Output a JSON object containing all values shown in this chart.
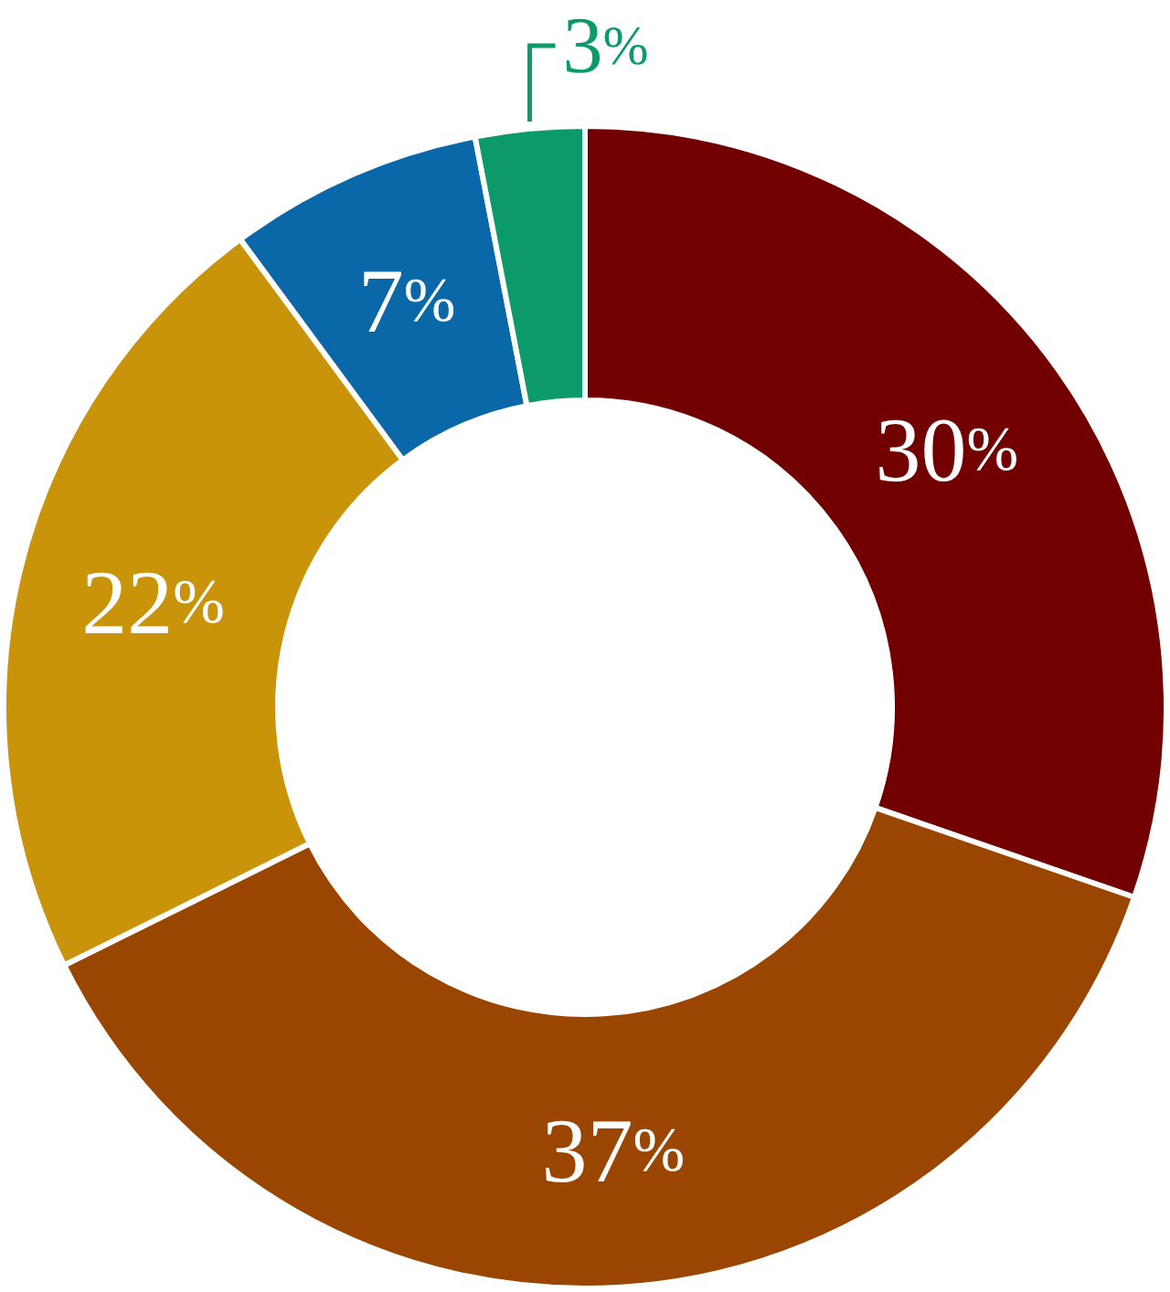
{
  "chart_data": {
    "type": "donut",
    "categories": [
      null,
      null,
      null,
      null,
      null
    ],
    "values": [
      30,
      37,
      22,
      7,
      3
    ],
    "colors": [
      "#720000",
      "#9a4500",
      "#c9930a",
      "#0a68a8",
      "#0d9a6a"
    ],
    "value_labels": [
      "30%",
      "37%",
      "22%",
      "7%",
      "3%"
    ]
  }
}
